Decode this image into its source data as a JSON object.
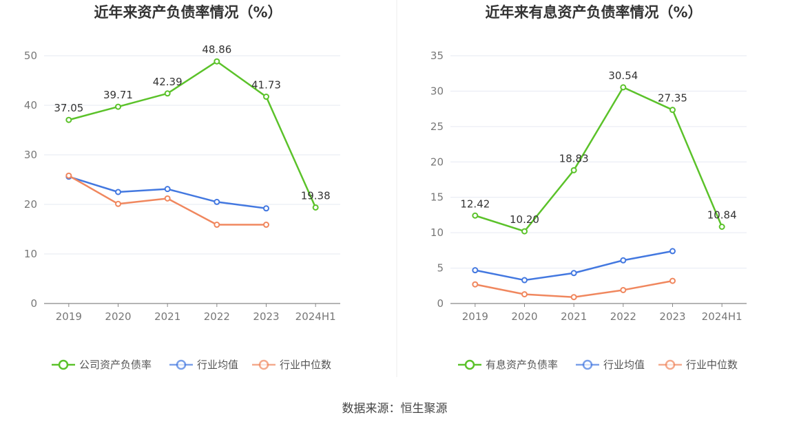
{
  "source": "数据来源：恒生聚源",
  "colors": {
    "company": "#5bc22a",
    "avg": "#4378e0",
    "median": "#f0875e",
    "grid": "#e6e9f2",
    "axis": "#888888"
  },
  "chart_data": [
    {
      "type": "line",
      "title": "近年来资产负债率情况（%）",
      "categories": [
        "2019",
        "2020",
        "2021",
        "2022",
        "2023",
        "2024H1"
      ],
      "ylim": [
        0,
        50
      ],
      "yticks": [
        0,
        10,
        20,
        30,
        40,
        50
      ],
      "grid": true,
      "legend_position": "bottom",
      "series": [
        {
          "name": "公司资产负债率",
          "values": [
            37.05,
            39.71,
            42.39,
            48.86,
            41.73,
            19.38
          ],
          "labels": [
            "37.05",
            "39.71",
            "42.39",
            "48.86",
            "41.73",
            "19.38"
          ]
        },
        {
          "name": "行业均值",
          "values": [
            25.6,
            22.5,
            23.1,
            20.5,
            19.2,
            null
          ]
        },
        {
          "name": "行业中位数",
          "values": [
            25.8,
            20.1,
            21.2,
            15.9,
            15.9,
            null
          ]
        }
      ]
    },
    {
      "type": "line",
      "title": "近年来有息资产负债率情况（%）",
      "categories": [
        "2019",
        "2020",
        "2021",
        "2022",
        "2023",
        "2024H1"
      ],
      "ylim": [
        0,
        35
      ],
      "yticks": [
        0,
        5,
        10,
        15,
        20,
        25,
        30,
        35
      ],
      "grid": true,
      "legend_position": "bottom",
      "series": [
        {
          "name": "有息资产负债率",
          "values": [
            12.42,
            10.2,
            18.83,
            30.54,
            27.35,
            10.84
          ],
          "labels": [
            "12.42",
            "10.20",
            "18.83",
            "30.54",
            "27.35",
            "10.84"
          ]
        },
        {
          "name": "行业均值",
          "values": [
            4.7,
            3.3,
            4.3,
            6.1,
            7.4,
            null
          ]
        },
        {
          "name": "行业中位数",
          "values": [
            2.7,
            1.3,
            0.9,
            1.9,
            3.2,
            null
          ]
        }
      ]
    }
  ]
}
